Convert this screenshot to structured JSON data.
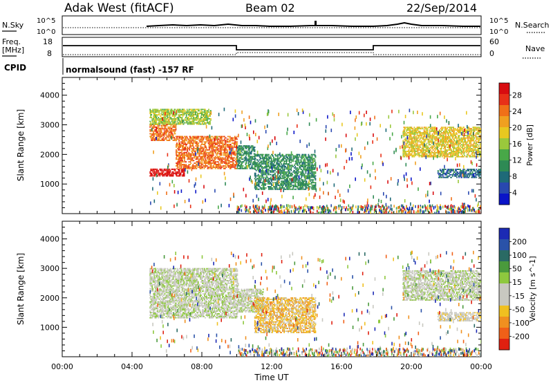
{
  "header": {
    "station": "Adak West (fitACF)",
    "beam": "Beam 02",
    "date": "22/Sep/2014"
  },
  "status_panels": {
    "nsky_label": "N.Sky",
    "nsearch_label": "N.Search",
    "count_scale_top": "10^5",
    "count_scale_bottom": "10^0",
    "freq_label_line1": "Freq.",
    "freq_label_line2": "[MHz]",
    "freq_ticks": [
      "18",
      "8"
    ],
    "nave_label": "Nave",
    "nave_ticks": [
      "60",
      "0"
    ],
    "cpid_label": "CPID",
    "cpid_text": "normalsound (fast) -157 RF"
  },
  "chart_data": [
    {
      "type": "heatmap",
      "title": "",
      "ylabel": "Slant Range [km]",
      "xlabel": "",
      "ylim": [
        0,
        4600
      ],
      "xlim": [
        0,
        24
      ],
      "yticks": [
        1000,
        2000,
        3000,
        4000
      ],
      "colorbar": {
        "label": "Power [dB]",
        "ticks": [
          "4",
          "8",
          "12",
          "16",
          "20",
          "24",
          "28"
        ],
        "colors": [
          "#0a14c8",
          "#2848b0",
          "#1e6a78",
          "#2e8a54",
          "#48a848",
          "#9ac83c",
          "#e8c820",
          "#f0a020",
          "#f07018",
          "#e83018",
          "#d80c10"
        ]
      },
      "echo_regions": [
        {
          "t_start": 5.0,
          "t_end": 7.0,
          "r_start": 1250,
          "r_end": 1500,
          "power_db": 28
        },
        {
          "t_start": 6.5,
          "t_end": 10.0,
          "r_start": 1500,
          "r_end": 2600,
          "power_db": 22
        },
        {
          "t_start": 5.0,
          "t_end": 6.5,
          "r_start": 2450,
          "r_end": 3000,
          "power_db": 22
        },
        {
          "t_start": 5.0,
          "t_end": 8.5,
          "r_start": 3000,
          "r_end": 3500,
          "power_db": 14
        },
        {
          "t_start": 10.0,
          "t_end": 11.0,
          "r_start": 1500,
          "r_end": 2300,
          "power_db": 10
        },
        {
          "t_start": 11.0,
          "t_end": 14.5,
          "r_start": 800,
          "r_end": 2000,
          "power_db": 10
        },
        {
          "t_start": 19.5,
          "t_end": 24.0,
          "r_start": 1900,
          "r_end": 2900,
          "power_db": 18
        },
        {
          "t_start": 21.5,
          "t_end": 24.0,
          "r_start": 1200,
          "r_end": 1500,
          "power_db": 8
        }
      ]
    },
    {
      "type": "heatmap",
      "title": "",
      "ylabel": "Slant Range [km]",
      "xlabel": "Time UT",
      "ylim": [
        0,
        4600
      ],
      "xlim": [
        0,
        24
      ],
      "xtick_labels": [
        "00:00",
        "04:00",
        "08:00",
        "12:00",
        "16:00",
        "20:00",
        "00:00"
      ],
      "yticks": [
        1000,
        2000,
        3000,
        4000
      ],
      "colorbar": {
        "label": "Velocity [m s^-1]",
        "ticks": [
          "200",
          "100",
          "50",
          "15",
          "-15",
          "-50",
          "-100",
          "-200"
        ],
        "colors": [
          "#1c2ab4",
          "#2a52a8",
          "#2a6a64",
          "#4a9a3c",
          "#8ec83e",
          "#c8c8c0",
          "#c8c8c0",
          "#f0c020",
          "#f09020",
          "#f06018",
          "#e02010"
        ]
      },
      "echo_regions": [
        {
          "t_start": 5.0,
          "t_end": 10.0,
          "r_start": 1300,
          "r_end": 3000,
          "velocity": 0
        },
        {
          "t_start": 10.0,
          "t_end": 11.5,
          "r_start": 1500,
          "r_end": 2300,
          "velocity": 0
        },
        {
          "t_start": 11.0,
          "t_end": 14.5,
          "r_start": 800,
          "r_end": 2000,
          "velocity": -70
        },
        {
          "t_start": 19.5,
          "t_end": 24.0,
          "r_start": 1900,
          "r_end": 2900,
          "velocity": 0
        },
        {
          "t_start": 21.5,
          "t_end": 24.0,
          "r_start": 1200,
          "r_end": 1500,
          "velocity": -30
        }
      ]
    }
  ]
}
